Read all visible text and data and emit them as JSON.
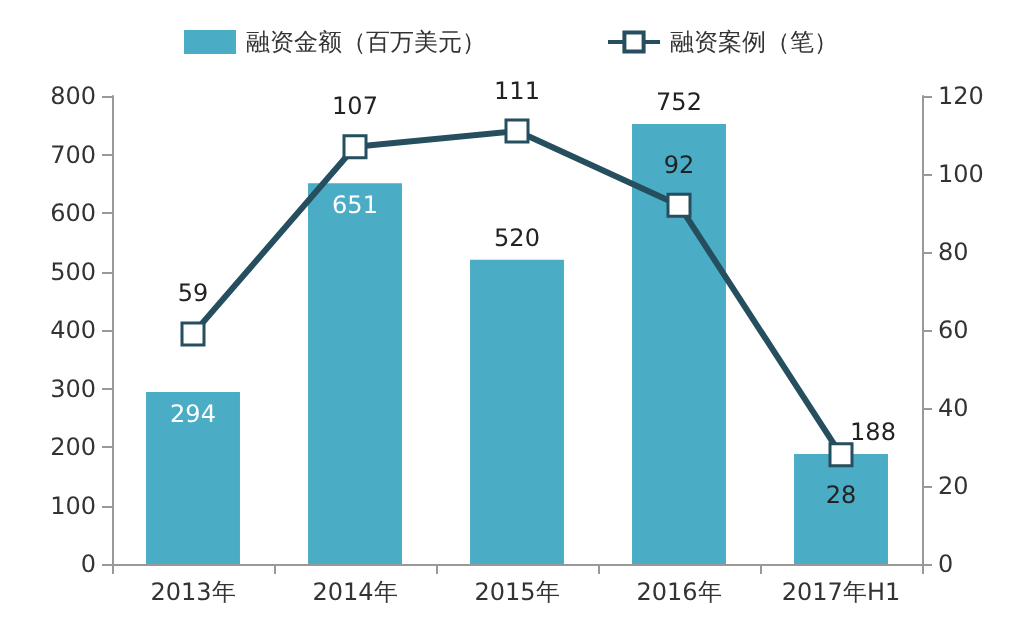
{
  "chart_data": {
    "type": "bar",
    "categories": [
      "2013年",
      "2014年",
      "2015年",
      "2016年",
      "2017年H1"
    ],
    "series": [
      {
        "name": "融资金额（百万美元）",
        "color": "#4bacc6",
        "values": [
          294,
          651,
          520,
          752,
          188
        ]
      },
      {
        "name": "融资案例（笔）",
        "type": "line",
        "axis": "y2",
        "color": "#254e5e",
        "marker": "square",
        "values": [
          59,
          107,
          111,
          92,
          28
        ]
      }
    ],
    "ylim": [
      0,
      800
    ],
    "yticks": [
      0,
      100,
      200,
      300,
      400,
      500,
      600,
      700,
      800
    ],
    "y2lim": [
      0,
      120
    ],
    "y2ticks": [
      0,
      20,
      40,
      60,
      80,
      100,
      120
    ],
    "data_labels": true,
    "legend": "top",
    "grid": false
  }
}
